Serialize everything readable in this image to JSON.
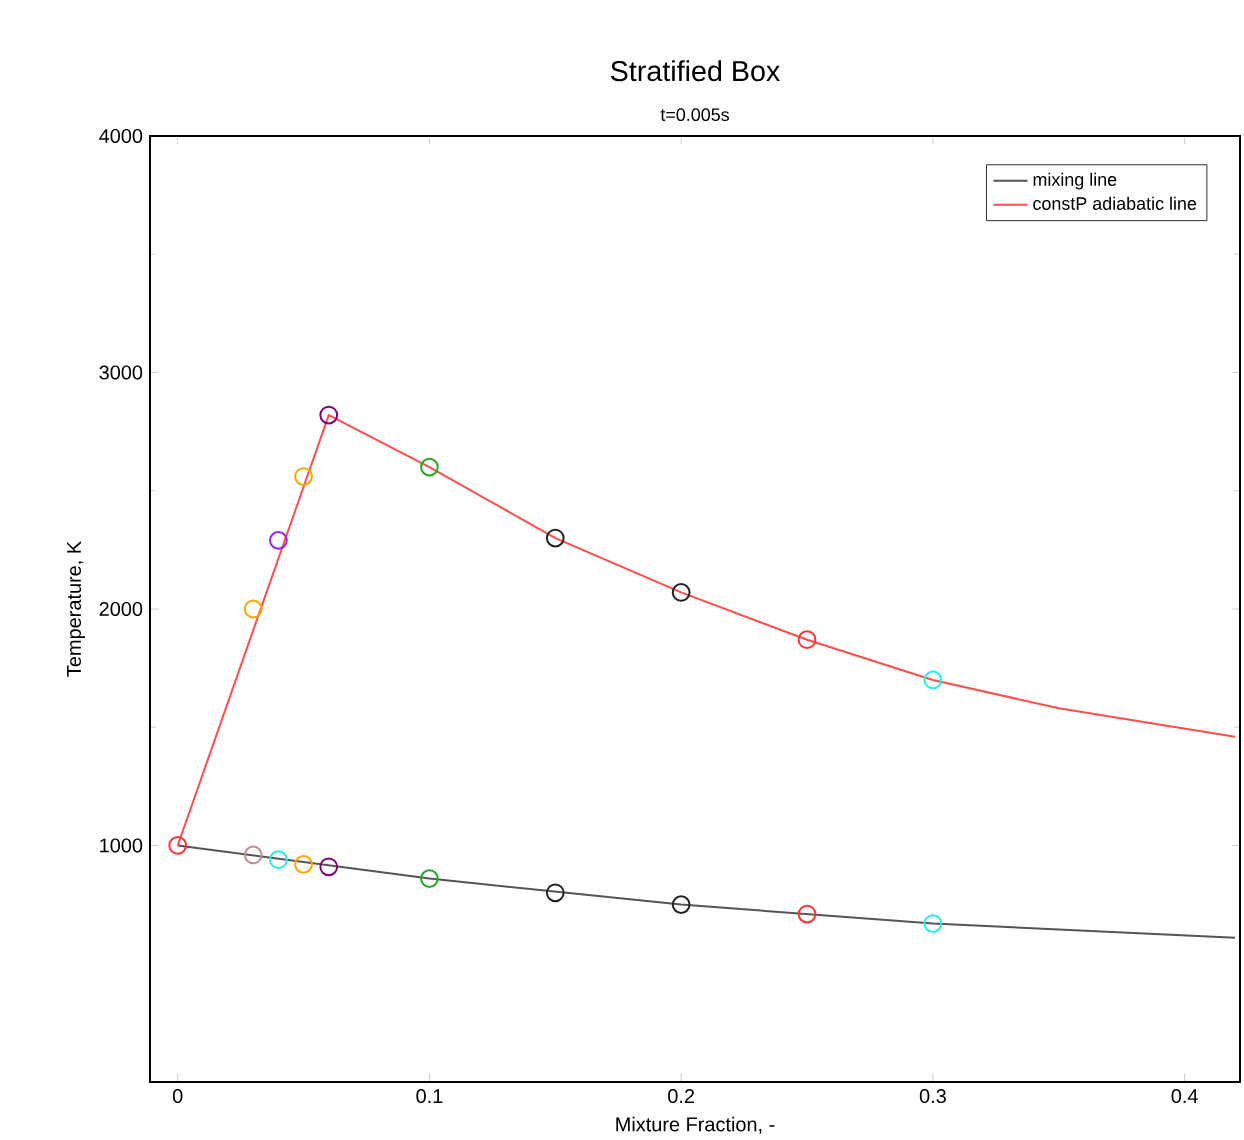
{
  "chart_data": {
    "type": "line",
    "title": "Stratified Box",
    "subtitle": "t=0.005s",
    "xlabel": "Mixture Fraction, -",
    "ylabel": "Temperature, K",
    "xlim": [
      -0.011,
      0.422
    ],
    "ylim": [
      0,
      4000
    ],
    "xticks": [
      0,
      0.1,
      0.2,
      0.3,
      0.4
    ],
    "yticks": [
      1000,
      2000,
      3000,
      4000
    ],
    "legend": "top right",
    "grid": false,
    "series": [
      {
        "name": "mixing line",
        "color": "#555555",
        "marker": "none",
        "x": [
          0,
          0.1,
          0.2,
          0.3,
          0.42
        ],
        "values": [
          1000,
          860,
          750,
          670,
          610
        ]
      },
      {
        "name": "constP adiabatic line",
        "color": "#ff4d4d",
        "marker": "none",
        "x": [
          0,
          0.06,
          0.1,
          0.15,
          0.2,
          0.25,
          0.3,
          0.35,
          0.42
        ],
        "values": [
          1000,
          2820,
          2600,
          2300,
          2070,
          1870,
          1700,
          1580,
          1460
        ]
      },
      {
        "type": "scatter",
        "marker": "circle",
        "x": [
          0,
          0.03,
          0.04,
          0.05,
          0.06,
          0.1,
          0.15,
          0.2,
          0.25,
          0.3
        ],
        "values": [
          1000,
          960,
          940,
          920,
          910,
          860,
          800,
          750,
          710,
          670
        ],
        "colors": [
          "#ff3333",
          "#bc8f8f",
          "#22eeee",
          "#ffa500",
          "#800080",
          "#22aa22",
          "#222222",
          "#222222",
          "#ff3333",
          "#22eeee"
        ]
      },
      {
        "type": "scatter",
        "marker": "circle",
        "x": [
          0.03,
          0.04,
          0.05,
          0.06,
          0.1,
          0.15,
          0.2,
          0.25,
          0.3
        ],
        "values": [
          2000,
          2290,
          2560,
          2820,
          2600,
          2300,
          2070,
          1870,
          1700
        ],
        "colors": [
          "#ffa500",
          "#a020f0",
          "#ffa500",
          "#800080",
          "#22aa22",
          "#222222",
          "#222222",
          "#ff3333",
          "#22eeee"
        ]
      }
    ]
  }
}
